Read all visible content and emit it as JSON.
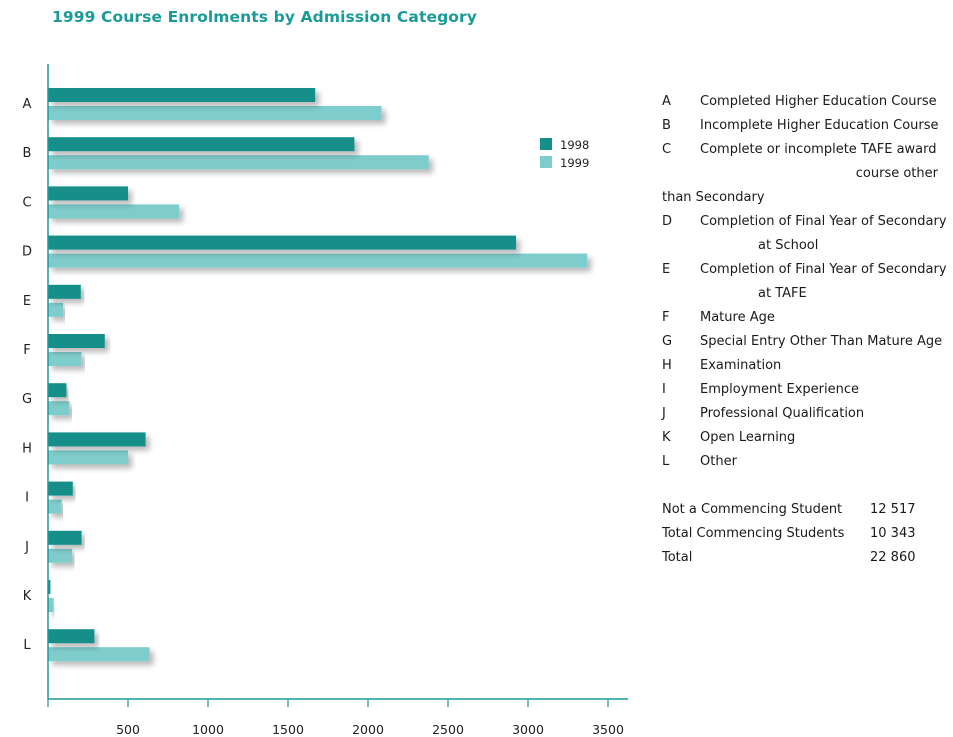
{
  "title": "1999 Course Enrolments by Admission Category",
  "colors": {
    "series_1998": "#138f8b",
    "series_1999": "#7ecccb",
    "axis": "#1a9a98",
    "title": "#1a9a98"
  },
  "chart_data": {
    "type": "bar",
    "orientation": "horizontal",
    "title": "1999 Course Enrolments by Admission Category",
    "categories": [
      "A",
      "B",
      "C",
      "D",
      "E",
      "F",
      "G",
      "H",
      "I",
      "J",
      "K",
      "L"
    ],
    "series": [
      {
        "name": "1998",
        "values": [
          1670,
          1915,
          500,
          2925,
          205,
          355,
          115,
          610,
          155,
          210,
          15,
          290
        ]
      },
      {
        "name": "1999",
        "values": [
          2085,
          2380,
          820,
          3370,
          95,
          210,
          135,
          500,
          85,
          150,
          35,
          635
        ]
      }
    ],
    "xlim": [
      0,
      3600
    ],
    "xticks": [
      500,
      1000,
      1500,
      2000,
      2500,
      3000,
      3500
    ],
    "xtick_labels": [
      "500",
      "1000",
      "1500",
      "2000",
      "2500",
      "3000",
      "3500"
    ],
    "legend": {
      "placement": "top-right",
      "entries": [
        "1998",
        "1999"
      ]
    },
    "grid": false,
    "xlabel": "",
    "ylabel": ""
  },
  "key": [
    {
      "letter": "A",
      "lines": [
        "Completed Higher Education Course"
      ]
    },
    {
      "letter": "B",
      "lines": [
        "Incomplete Higher Education Course"
      ]
    },
    {
      "letter": "C",
      "lines": [
        "Complete or incomplete TAFE award",
        "course other",
        "than Secondary"
      ]
    },
    {
      "letter": "D",
      "lines": [
        "Completion of Final Year of Secondary",
        "at School"
      ]
    },
    {
      "letter": "E",
      "lines": [
        "Completion of Final Year of Secondary",
        "at TAFE"
      ]
    },
    {
      "letter": "F",
      "lines": [
        "Mature Age"
      ]
    },
    {
      "letter": "G",
      "lines": [
        "Special Entry Other Than Mature Age"
      ]
    },
    {
      "letter": "H",
      "lines": [
        "Examination"
      ]
    },
    {
      "letter": "I",
      "lines": [
        "Employment Experience"
      ]
    },
    {
      "letter": "J",
      "lines": [
        "Professional Qualification"
      ]
    },
    {
      "letter": "K",
      "lines": [
        "Open Learning"
      ]
    },
    {
      "letter": "L",
      "lines": [
        "Other"
      ]
    }
  ],
  "totals": [
    {
      "label": "Not a Commencing Student",
      "value": "12 517"
    },
    {
      "label": "Total Commencing Students",
      "value": "10 343"
    },
    {
      "label": "Total",
      "value": "22 860"
    }
  ]
}
